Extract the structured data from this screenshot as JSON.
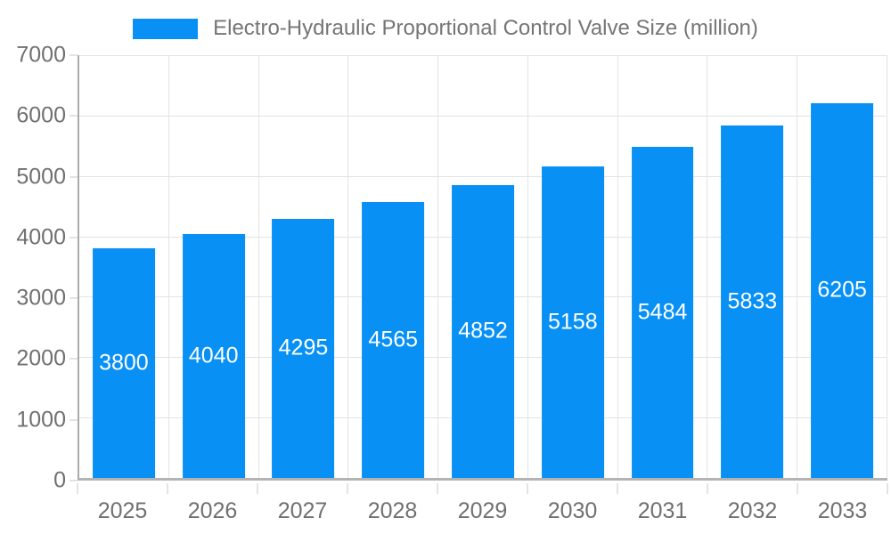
{
  "chart_data": {
    "type": "bar",
    "title": "Electro-Hydraulic Proportional Control Valve Size (million)",
    "categories": [
      "2025",
      "2026",
      "2027",
      "2028",
      "2029",
      "2030",
      "2031",
      "2032",
      "2033"
    ],
    "values": [
      3800,
      4040,
      4295,
      4565,
      4852,
      5158,
      5484,
      5833,
      6205
    ],
    "ylim": [
      0,
      7000
    ],
    "ytick_step": 1000,
    "ytick_labels": [
      "0",
      "1000",
      "2000",
      "3000",
      "4000",
      "5000",
      "6000",
      "7000"
    ],
    "bar_color": "#0890f5",
    "value_label_color": "#ffffff",
    "grid": true,
    "legend_position": "top"
  },
  "colors": {
    "accent": "#0890f5",
    "title_text": "#757575",
    "axis_text": "#707070",
    "gridline": "#e3e3e3",
    "axis_line": "#b3b3b3",
    "background": "#ffffff"
  }
}
